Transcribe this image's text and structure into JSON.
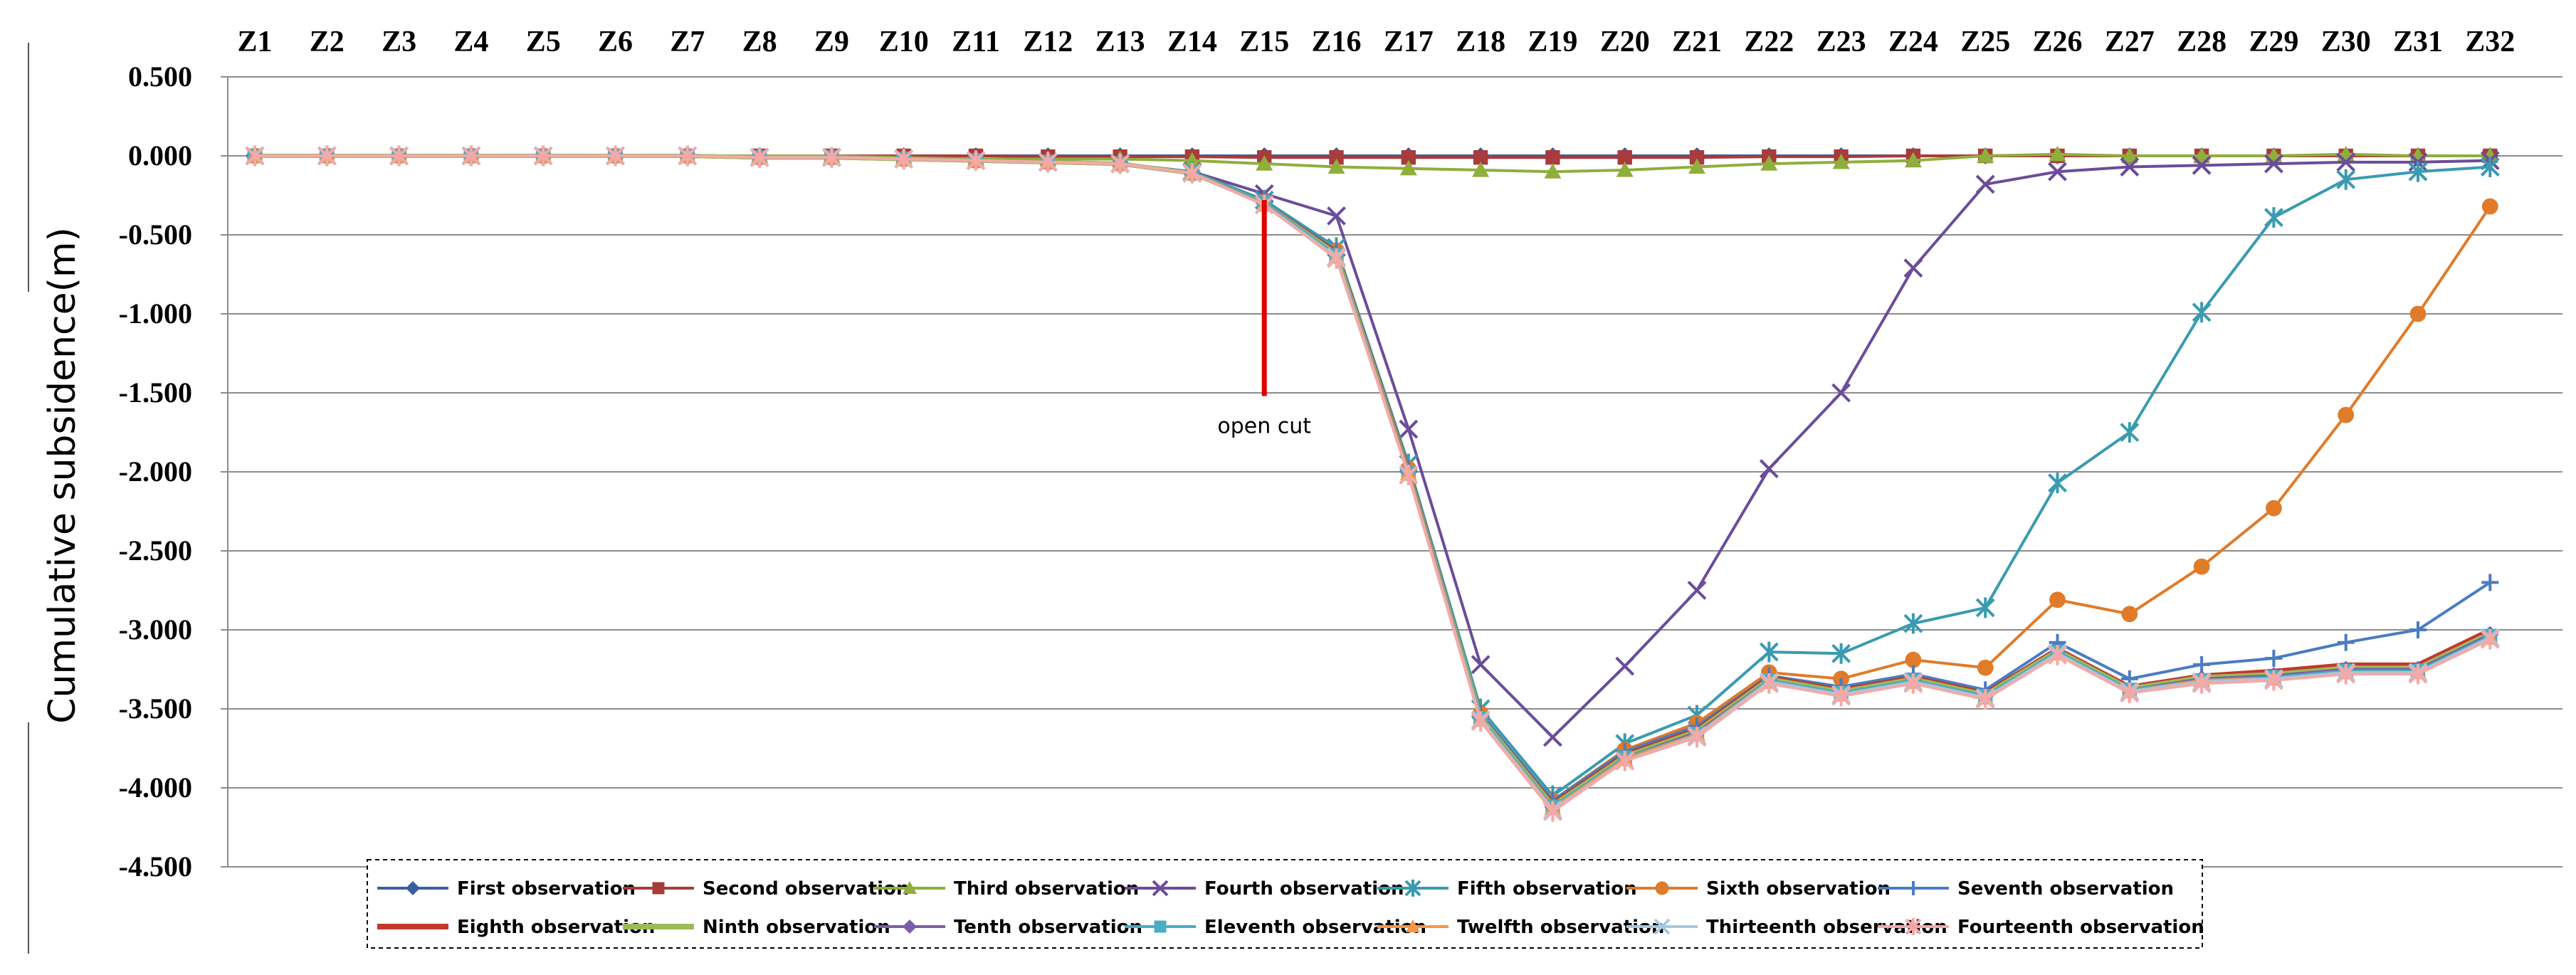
{
  "chart_data": {
    "type": "line",
    "title": "",
    "xlabel": "",
    "ylabel": "Cumulative subsidence(m)",
    "categories": [
      "Z1",
      "Z2",
      "Z3",
      "Z4",
      "Z5",
      "Z6",
      "Z7",
      "Z8",
      "Z9",
      "Z10",
      "Z11",
      "Z12",
      "Z13",
      "Z14",
      "Z15",
      "Z16",
      "Z17",
      "Z18",
      "Z19",
      "Z20",
      "Z21",
      "Z22",
      "Z23",
      "Z24",
      "Z25",
      "Z26",
      "Z27",
      "Z28",
      "Z29",
      "Z30",
      "Z31",
      "Z32"
    ],
    "x_axis_position": "top",
    "ylim": [
      -4.5,
      0.5
    ],
    "yticks": [
      "0.500",
      "0.000",
      "-0.500",
      "-1.000",
      "-1.500",
      "-2.000",
      "-2.500",
      "-3.000",
      "-3.500",
      "-4.000",
      "-4.500"
    ],
    "grid": "horizontal",
    "legend_position": "bottom",
    "annotation": {
      "text": "open cut",
      "at_category": "Z15",
      "y_top": -0.28,
      "y_bottom": -1.52,
      "color": "#e00000"
    },
    "series": [
      {
        "name": "First observation",
        "color": "#3a5f9e",
        "marker": "diamond",
        "values": [
          0,
          0,
          0,
          0,
          0,
          0,
          0,
          0,
          0,
          0,
          0,
          0,
          0,
          0,
          0,
          0,
          0,
          0,
          0,
          0,
          0,
          0,
          0,
          0,
          0,
          0,
          0,
          0,
          0,
          0,
          0,
          0
        ]
      },
      {
        "name": "Second observation",
        "color": "#a83b3b",
        "marker": "square",
        "values": [
          0,
          0,
          0,
          0,
          0,
          0,
          0,
          0,
          0,
          0,
          0,
          -0.005,
          -0.005,
          -0.005,
          -0.01,
          -0.01,
          -0.01,
          -0.01,
          -0.01,
          -0.01,
          -0.01,
          -0.005,
          -0.005,
          0,
          0,
          0,
          0,
          0,
          0,
          0,
          0,
          0
        ]
      },
      {
        "name": "Third observation",
        "color": "#8fae3c",
        "marker": "triangle",
        "values": [
          0,
          0,
          0,
          0,
          0,
          0,
          0,
          0,
          0,
          -0.01,
          -0.02,
          -0.02,
          -0.02,
          -0.03,
          -0.05,
          -0.07,
          -0.08,
          -0.09,
          -0.1,
          -0.09,
          -0.07,
          -0.05,
          -0.04,
          -0.03,
          0,
          0.01,
          0,
          0,
          0,
          0.01,
          0,
          0
        ]
      },
      {
        "name": "Fourth observation",
        "color": "#6b4c9a",
        "marker": "x",
        "values": [
          0,
          0,
          0,
          0,
          0,
          0,
          0,
          -0.01,
          -0.01,
          -0.02,
          -0.03,
          -0.04,
          -0.05,
          -0.1,
          -0.24,
          -0.38,
          -1.73,
          -3.22,
          -3.68,
          -3.23,
          -2.75,
          -1.98,
          -1.5,
          -0.71,
          -0.18,
          -0.1,
          -0.07,
          -0.06,
          -0.05,
          -0.04,
          -0.04,
          -0.03
        ]
      },
      {
        "name": "Fifth observation",
        "color": "#3a9bb0",
        "marker": "asterisk",
        "values": [
          0,
          0,
          0,
          0,
          0,
          0,
          0,
          -0.01,
          -0.01,
          -0.02,
          -0.03,
          -0.04,
          -0.05,
          -0.1,
          -0.28,
          -0.58,
          -1.95,
          -3.5,
          -4.05,
          -3.72,
          -3.54,
          -3.14,
          -3.15,
          -2.96,
          -2.86,
          -2.07,
          -1.75,
          -0.99,
          -0.39,
          -0.15,
          -0.1,
          -0.07
        ]
      },
      {
        "name": "Sixth observation",
        "color": "#e07b2a",
        "marker": "circle",
        "values": [
          0,
          0,
          0,
          0,
          0,
          0,
          0,
          -0.01,
          -0.01,
          -0.02,
          -0.03,
          -0.04,
          -0.05,
          -0.11,
          -0.29,
          -0.6,
          -1.98,
          -3.53,
          -4.08,
          -3.76,
          -3.59,
          -3.27,
          -3.31,
          -3.19,
          -3.24,
          -2.81,
          -2.9,
          -2.6,
          -2.23,
          -1.64,
          -1.0,
          -0.32
        ]
      },
      {
        "name": "Seventh observation",
        "color": "#4a7cc0",
        "marker": "plus",
        "values": [
          0,
          0,
          0,
          0,
          0,
          0,
          0,
          -0.01,
          -0.01,
          -0.02,
          -0.03,
          -0.04,
          -0.05,
          -0.11,
          -0.29,
          -0.6,
          -1.98,
          -3.53,
          -4.08,
          -3.77,
          -3.61,
          -3.29,
          -3.36,
          -3.28,
          -3.38,
          -3.08,
          -3.31,
          -3.22,
          -3.18,
          -3.08,
          -3.0,
          -2.7
        ]
      },
      {
        "name": "Eighth observation",
        "color": "#c0392b",
        "marker": "line",
        "values": [
          0,
          0,
          0,
          0,
          0,
          0,
          0,
          -0.01,
          -0.01,
          -0.02,
          -0.03,
          -0.04,
          -0.05,
          -0.11,
          -0.3,
          -0.61,
          -1.99,
          -3.55,
          -4.1,
          -3.79,
          -3.63,
          -3.3,
          -3.38,
          -3.3,
          -3.4,
          -3.12,
          -3.36,
          -3.29,
          -3.26,
          -3.22,
          -3.22,
          -3.0
        ]
      },
      {
        "name": "Ninth observation",
        "color": "#9bbb59",
        "marker": "line",
        "values": [
          0,
          0,
          0,
          0,
          0,
          0,
          0,
          -0.01,
          -0.01,
          -0.02,
          -0.03,
          -0.04,
          -0.05,
          -0.11,
          -0.3,
          -0.62,
          -2.0,
          -3.55,
          -4.11,
          -3.8,
          -3.64,
          -3.31,
          -3.39,
          -3.31,
          -3.41,
          -3.13,
          -3.37,
          -3.3,
          -3.28,
          -3.24,
          -3.24,
          -3.02
        ]
      },
      {
        "name": "Tenth observation",
        "color": "#7a5fa8",
        "marker": "diamond",
        "values": [
          0,
          0,
          0,
          0,
          0,
          0,
          0,
          -0.01,
          -0.01,
          -0.02,
          -0.03,
          -0.04,
          -0.05,
          -0.11,
          -0.3,
          -0.63,
          -2.0,
          -3.56,
          -4.12,
          -3.81,
          -3.65,
          -3.32,
          -3.4,
          -3.32,
          -3.42,
          -3.14,
          -3.38,
          -3.31,
          -3.29,
          -3.25,
          -3.25,
          -3.03
        ]
      },
      {
        "name": "Eleventh observation",
        "color": "#4bacc6",
        "marker": "square",
        "values": [
          0,
          0,
          0,
          0,
          0,
          0,
          0,
          -0.01,
          -0.01,
          -0.02,
          -0.03,
          -0.04,
          -0.05,
          -0.11,
          -0.3,
          -0.63,
          -2.01,
          -3.56,
          -4.12,
          -3.81,
          -3.66,
          -3.32,
          -3.4,
          -3.32,
          -3.42,
          -3.14,
          -3.38,
          -3.32,
          -3.3,
          -3.26,
          -3.26,
          -3.04
        ]
      },
      {
        "name": "Twelfth observation",
        "color": "#f79646",
        "marker": "triangle",
        "values": [
          0,
          0,
          0,
          0,
          0,
          0,
          0,
          -0.01,
          -0.01,
          -0.02,
          -0.03,
          -0.04,
          -0.05,
          -0.11,
          -0.31,
          -0.64,
          -2.01,
          -3.57,
          -4.13,
          -3.82,
          -3.66,
          -3.33,
          -3.41,
          -3.33,
          -3.43,
          -3.15,
          -3.39,
          -3.32,
          -3.31,
          -3.27,
          -3.27,
          -3.05
        ]
      },
      {
        "name": "Thirteenth observation",
        "color": "#a6c8e0",
        "marker": "x",
        "values": [
          0,
          0,
          0,
          0,
          0,
          0,
          0,
          -0.01,
          -0.01,
          -0.02,
          -0.03,
          -0.04,
          -0.05,
          -0.11,
          -0.31,
          -0.64,
          -2.02,
          -3.57,
          -4.14,
          -3.83,
          -3.67,
          -3.33,
          -3.41,
          -3.33,
          -3.43,
          -3.15,
          -3.39,
          -3.33,
          -3.31,
          -3.27,
          -3.27,
          -3.05
        ]
      },
      {
        "name": "Fourteenth observation",
        "color": "#f4a9a8",
        "marker": "asterisk",
        "values": [
          0,
          0,
          0,
          0,
          0,
          0,
          0,
          -0.01,
          -0.01,
          -0.02,
          -0.03,
          -0.04,
          -0.05,
          -0.11,
          -0.31,
          -0.65,
          -2.02,
          -3.58,
          -4.15,
          -3.83,
          -3.68,
          -3.34,
          -3.42,
          -3.34,
          -3.44,
          -3.16,
          -3.4,
          -3.34,
          -3.32,
          -3.28,
          -3.28,
          -3.06
        ]
      }
    ]
  }
}
